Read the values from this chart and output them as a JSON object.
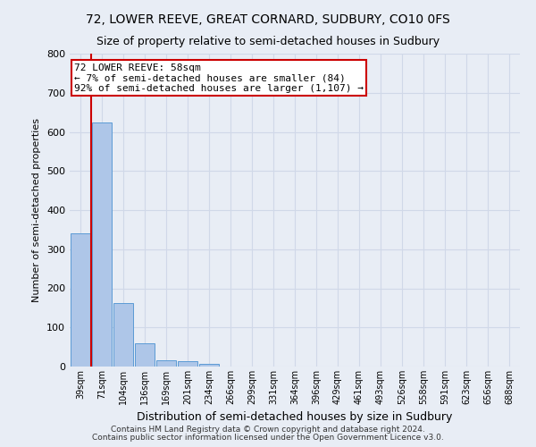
{
  "title": "72, LOWER REEVE, GREAT CORNARD, SUDBURY, CO10 0FS",
  "subtitle": "Size of property relative to semi-detached houses in Sudbury",
  "xlabel": "Distribution of semi-detached houses by size in Sudbury",
  "ylabel": "Number of semi-detached properties",
  "footnote1": "Contains HM Land Registry data © Crown copyright and database right 2024.",
  "footnote2": "Contains public sector information licensed under the Open Government Licence v3.0.",
  "categories": [
    "39sqm",
    "71sqm",
    "104sqm",
    "136sqm",
    "169sqm",
    "201sqm",
    "234sqm",
    "266sqm",
    "299sqm",
    "331sqm",
    "364sqm",
    "396sqm",
    "429sqm",
    "461sqm",
    "493sqm",
    "526sqm",
    "558sqm",
    "591sqm",
    "623sqm",
    "656sqm",
    "688sqm"
  ],
  "values": [
    340,
    625,
    163,
    60,
    15,
    13,
    7,
    0,
    0,
    0,
    0,
    0,
    0,
    0,
    0,
    0,
    0,
    0,
    0,
    0,
    0
  ],
  "bar_color": "#aec6e8",
  "bar_edge_color": "#5b9bd5",
  "annotation_text1": "72 LOWER REEVE: 58sqm",
  "annotation_text2": "← 7% of semi-detached houses are smaller (84)",
  "annotation_text3": "92% of semi-detached houses are larger (1,107) →",
  "annotation_box_color": "#ffffff",
  "annotation_box_edge_color": "#cc0000",
  "vline_color": "#cc0000",
  "ylim": [
    0,
    800
  ],
  "yticks": [
    0,
    100,
    200,
    300,
    400,
    500,
    600,
    700,
    800
  ],
  "grid_color": "#d0d8e8",
  "bg_color": "#e8edf5",
  "title_fontsize": 10,
  "subtitle_fontsize": 9,
  "xlabel_fontsize": 9,
  "ylabel_fontsize": 8,
  "footnote_fontsize": 6.5,
  "annotation_fontsize": 8
}
